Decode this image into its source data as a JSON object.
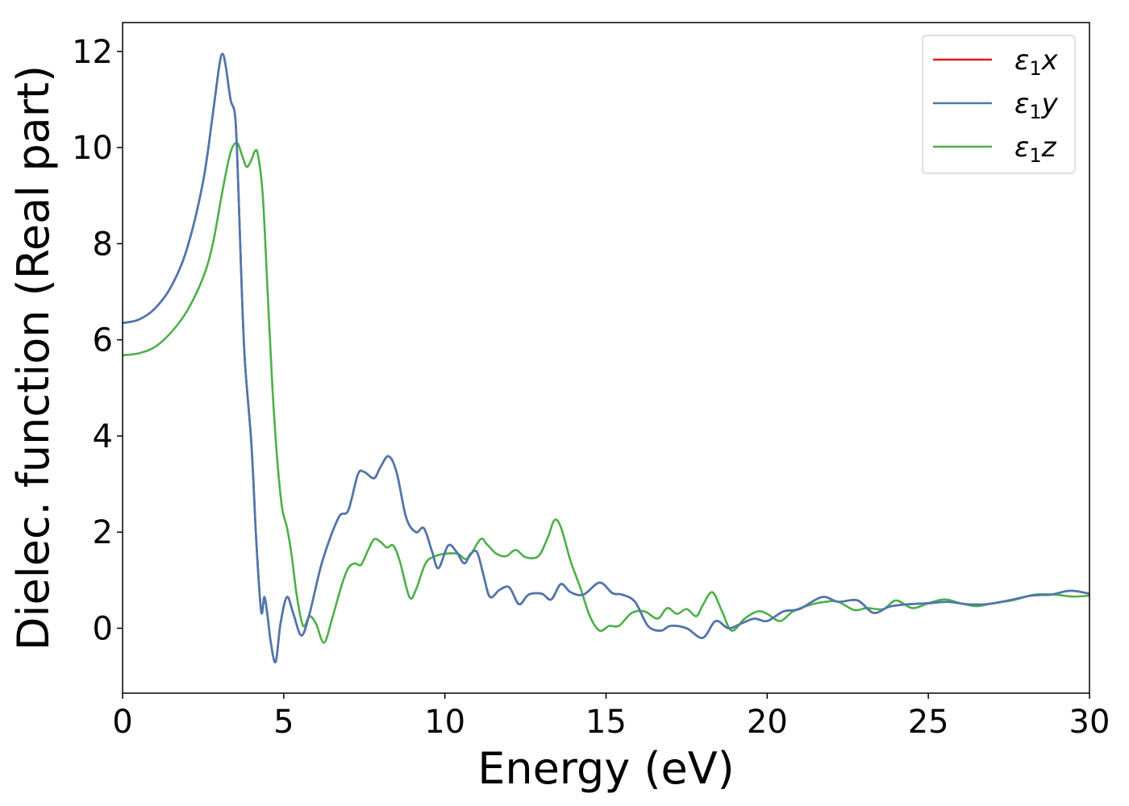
{
  "chart_data": {
    "type": "line",
    "title": "",
    "xlabel": "Energy (eV)",
    "ylabel": "Dielec. function (Real part)",
    "xlim": [
      0,
      30
    ],
    "ylim": [
      -1.35,
      12.6
    ],
    "xticks": [
      "0",
      "5",
      "10",
      "15",
      "20",
      "25",
      "30"
    ],
    "yticks": [
      "0",
      "2",
      "4",
      "6",
      "8",
      "10",
      "12"
    ],
    "grid": false,
    "legend_position": "top-right",
    "series": [
      {
        "name": "ε₁x",
        "legend_main": "ε",
        "legend_sub": "1",
        "legend_suffix": "x",
        "color": "#e41a1c",
        "points": [
          [
            0,
            6.35
          ],
          [
            0.5,
            6.42
          ],
          [
            1.0,
            6.65
          ],
          [
            1.5,
            7.1
          ],
          [
            2.0,
            7.9
          ],
          [
            2.5,
            9.3
          ],
          [
            2.8,
            10.7
          ],
          [
            3.0,
            11.7
          ],
          [
            3.1,
            11.95
          ],
          [
            3.2,
            11.7
          ],
          [
            3.35,
            11.0
          ],
          [
            3.5,
            10.6
          ],
          [
            3.6,
            9.0
          ],
          [
            3.7,
            7.0
          ],
          [
            3.8,
            5.5
          ],
          [
            4.0,
            3.8
          ],
          [
            4.15,
            1.8
          ],
          [
            4.3,
            0.35
          ],
          [
            4.4,
            0.65
          ],
          [
            4.5,
            0.25
          ],
          [
            4.6,
            -0.3
          ],
          [
            4.75,
            -0.7
          ],
          [
            4.9,
            0.1
          ],
          [
            5.1,
            0.65
          ],
          [
            5.3,
            0.3
          ],
          [
            5.55,
            -0.15
          ],
          [
            5.8,
            0.3
          ],
          [
            6.2,
            1.4
          ],
          [
            6.7,
            2.3
          ],
          [
            7.0,
            2.45
          ],
          [
            7.3,
            3.2
          ],
          [
            7.5,
            3.25
          ],
          [
            7.8,
            3.12
          ],
          [
            8.0,
            3.35
          ],
          [
            8.25,
            3.58
          ],
          [
            8.5,
            3.25
          ],
          [
            8.8,
            2.3
          ],
          [
            9.1,
            2.0
          ],
          [
            9.35,
            2.08
          ],
          [
            9.6,
            1.6
          ],
          [
            9.8,
            1.25
          ],
          [
            10.1,
            1.72
          ],
          [
            10.35,
            1.6
          ],
          [
            10.6,
            1.35
          ],
          [
            10.8,
            1.55
          ],
          [
            11.0,
            1.58
          ],
          [
            11.2,
            1.1
          ],
          [
            11.4,
            0.65
          ],
          [
            11.7,
            0.8
          ],
          [
            12.0,
            0.85
          ],
          [
            12.3,
            0.5
          ],
          [
            12.6,
            0.7
          ],
          [
            13.0,
            0.72
          ],
          [
            13.3,
            0.6
          ],
          [
            13.6,
            0.92
          ],
          [
            13.9,
            0.75
          ],
          [
            14.3,
            0.7
          ],
          [
            14.8,
            0.95
          ],
          [
            15.2,
            0.73
          ],
          [
            15.5,
            0.7
          ],
          [
            15.9,
            0.55
          ],
          [
            16.3,
            0.05
          ],
          [
            16.7,
            -0.05
          ],
          [
            17.0,
            0.05
          ],
          [
            17.5,
            0.0
          ],
          [
            18.0,
            -0.2
          ],
          [
            18.4,
            0.15
          ],
          [
            18.8,
            0.0
          ],
          [
            19.2,
            0.1
          ],
          [
            19.6,
            0.2
          ],
          [
            20.0,
            0.15
          ],
          [
            20.5,
            0.35
          ],
          [
            21.0,
            0.4
          ],
          [
            21.7,
            0.65
          ],
          [
            22.2,
            0.55
          ],
          [
            22.8,
            0.58
          ],
          [
            23.3,
            0.32
          ],
          [
            23.8,
            0.45
          ],
          [
            24.4,
            0.5
          ],
          [
            25.0,
            0.52
          ],
          [
            25.6,
            0.55
          ],
          [
            26.2,
            0.5
          ],
          [
            26.8,
            0.5
          ],
          [
            27.5,
            0.58
          ],
          [
            28.2,
            0.68
          ],
          [
            28.8,
            0.7
          ],
          [
            29.4,
            0.78
          ],
          [
            30.0,
            0.72
          ]
        ]
      },
      {
        "name": "ε₁y",
        "legend_main": "ε",
        "legend_sub": "1",
        "legend_suffix": "y",
        "color": "#4a78b0",
        "points": [
          [
            0,
            6.35
          ],
          [
            0.5,
            6.42
          ],
          [
            1.0,
            6.65
          ],
          [
            1.5,
            7.1
          ],
          [
            2.0,
            7.9
          ],
          [
            2.5,
            9.3
          ],
          [
            2.8,
            10.7
          ],
          [
            3.0,
            11.7
          ],
          [
            3.1,
            11.95
          ],
          [
            3.2,
            11.7
          ],
          [
            3.35,
            11.0
          ],
          [
            3.5,
            10.6
          ],
          [
            3.6,
            9.0
          ],
          [
            3.7,
            7.0
          ],
          [
            3.8,
            5.5
          ],
          [
            4.0,
            3.8
          ],
          [
            4.15,
            1.8
          ],
          [
            4.3,
            0.35
          ],
          [
            4.4,
            0.65
          ],
          [
            4.5,
            0.25
          ],
          [
            4.6,
            -0.3
          ],
          [
            4.75,
            -0.7
          ],
          [
            4.9,
            0.1
          ],
          [
            5.1,
            0.65
          ],
          [
            5.3,
            0.3
          ],
          [
            5.55,
            -0.15
          ],
          [
            5.8,
            0.3
          ],
          [
            6.2,
            1.4
          ],
          [
            6.7,
            2.3
          ],
          [
            7.0,
            2.45
          ],
          [
            7.3,
            3.2
          ],
          [
            7.5,
            3.25
          ],
          [
            7.8,
            3.12
          ],
          [
            8.0,
            3.35
          ],
          [
            8.25,
            3.58
          ],
          [
            8.5,
            3.25
          ],
          [
            8.8,
            2.3
          ],
          [
            9.1,
            2.0
          ],
          [
            9.35,
            2.08
          ],
          [
            9.6,
            1.6
          ],
          [
            9.8,
            1.25
          ],
          [
            10.1,
            1.72
          ],
          [
            10.35,
            1.6
          ],
          [
            10.6,
            1.35
          ],
          [
            10.8,
            1.55
          ],
          [
            11.0,
            1.58
          ],
          [
            11.2,
            1.1
          ],
          [
            11.4,
            0.65
          ],
          [
            11.7,
            0.8
          ],
          [
            12.0,
            0.85
          ],
          [
            12.3,
            0.5
          ],
          [
            12.6,
            0.7
          ],
          [
            13.0,
            0.72
          ],
          [
            13.3,
            0.6
          ],
          [
            13.6,
            0.92
          ],
          [
            13.9,
            0.75
          ],
          [
            14.3,
            0.7
          ],
          [
            14.8,
            0.95
          ],
          [
            15.2,
            0.73
          ],
          [
            15.5,
            0.7
          ],
          [
            15.9,
            0.55
          ],
          [
            16.3,
            0.05
          ],
          [
            16.7,
            -0.05
          ],
          [
            17.0,
            0.05
          ],
          [
            17.5,
            0.0
          ],
          [
            18.0,
            -0.2
          ],
          [
            18.4,
            0.15
          ],
          [
            18.8,
            0.0
          ],
          [
            19.2,
            0.1
          ],
          [
            19.6,
            0.2
          ],
          [
            20.0,
            0.15
          ],
          [
            20.5,
            0.35
          ],
          [
            21.0,
            0.4
          ],
          [
            21.7,
            0.65
          ],
          [
            22.2,
            0.55
          ],
          [
            22.8,
            0.58
          ],
          [
            23.3,
            0.32
          ],
          [
            23.8,
            0.45
          ],
          [
            24.4,
            0.5
          ],
          [
            25.0,
            0.52
          ],
          [
            25.6,
            0.55
          ],
          [
            26.2,
            0.5
          ],
          [
            26.8,
            0.5
          ],
          [
            27.5,
            0.58
          ],
          [
            28.2,
            0.68
          ],
          [
            28.8,
            0.7
          ],
          [
            29.4,
            0.78
          ],
          [
            30.0,
            0.72
          ]
        ]
      },
      {
        "name": "ε₁z",
        "legend_main": "ε",
        "legend_sub": "1",
        "legend_suffix": "z",
        "color": "#4daf4a",
        "points": [
          [
            0,
            5.68
          ],
          [
            0.5,
            5.72
          ],
          [
            1.0,
            5.85
          ],
          [
            1.5,
            6.15
          ],
          [
            2.0,
            6.6
          ],
          [
            2.5,
            7.3
          ],
          [
            2.8,
            8.0
          ],
          [
            3.1,
            9.1
          ],
          [
            3.35,
            9.9
          ],
          [
            3.55,
            10.1
          ],
          [
            3.7,
            9.85
          ],
          [
            3.85,
            9.6
          ],
          [
            4.0,
            9.75
          ],
          [
            4.1,
            9.92
          ],
          [
            4.2,
            9.85
          ],
          [
            4.35,
            9.0
          ],
          [
            4.5,
            7.0
          ],
          [
            4.65,
            5.0
          ],
          [
            4.8,
            3.5
          ],
          [
            4.95,
            2.5
          ],
          [
            5.1,
            2.1
          ],
          [
            5.25,
            1.5
          ],
          [
            5.4,
            0.7
          ],
          [
            5.6,
            0.05
          ],
          [
            5.8,
            0.25
          ],
          [
            6.0,
            0.1
          ],
          [
            6.25,
            -0.3
          ],
          [
            6.5,
            0.2
          ],
          [
            6.8,
            0.9
          ],
          [
            7.0,
            1.25
          ],
          [
            7.2,
            1.35
          ],
          [
            7.4,
            1.32
          ],
          [
            7.6,
            1.6
          ],
          [
            7.8,
            1.85
          ],
          [
            8.0,
            1.8
          ],
          [
            8.2,
            1.68
          ],
          [
            8.4,
            1.72
          ],
          [
            8.6,
            1.4
          ],
          [
            8.9,
            0.65
          ],
          [
            9.1,
            0.8
          ],
          [
            9.4,
            1.35
          ],
          [
            9.7,
            1.5
          ],
          [
            10.0,
            1.55
          ],
          [
            10.4,
            1.55
          ],
          [
            10.7,
            1.45
          ],
          [
            11.1,
            1.85
          ],
          [
            11.3,
            1.75
          ],
          [
            11.6,
            1.55
          ],
          [
            11.9,
            1.5
          ],
          [
            12.2,
            1.63
          ],
          [
            12.5,
            1.48
          ],
          [
            12.9,
            1.5
          ],
          [
            13.2,
            1.9
          ],
          [
            13.4,
            2.25
          ],
          [
            13.6,
            2.1
          ],
          [
            13.9,
            1.4
          ],
          [
            14.2,
            0.85
          ],
          [
            14.5,
            0.25
          ],
          [
            14.8,
            -0.05
          ],
          [
            15.1,
            0.05
          ],
          [
            15.4,
            0.05
          ],
          [
            15.8,
            0.32
          ],
          [
            16.2,
            0.35
          ],
          [
            16.6,
            0.2
          ],
          [
            16.9,
            0.42
          ],
          [
            17.2,
            0.3
          ],
          [
            17.5,
            0.4
          ],
          [
            17.8,
            0.25
          ],
          [
            18.0,
            0.48
          ],
          [
            18.3,
            0.75
          ],
          [
            18.6,
            0.35
          ],
          [
            18.9,
            -0.05
          ],
          [
            19.3,
            0.2
          ],
          [
            19.7,
            0.35
          ],
          [
            20.0,
            0.3
          ],
          [
            20.4,
            0.15
          ],
          [
            20.8,
            0.35
          ],
          [
            21.3,
            0.48
          ],
          [
            21.8,
            0.55
          ],
          [
            22.2,
            0.55
          ],
          [
            22.7,
            0.38
          ],
          [
            23.1,
            0.42
          ],
          [
            23.6,
            0.4
          ],
          [
            24.0,
            0.58
          ],
          [
            24.5,
            0.42
          ],
          [
            25.0,
            0.52
          ],
          [
            25.5,
            0.6
          ],
          [
            26.0,
            0.52
          ],
          [
            26.5,
            0.46
          ],
          [
            27.0,
            0.52
          ],
          [
            27.6,
            0.58
          ],
          [
            28.3,
            0.7
          ],
          [
            28.9,
            0.7
          ],
          [
            29.5,
            0.66
          ],
          [
            30.0,
            0.68
          ]
        ]
      }
    ]
  }
}
